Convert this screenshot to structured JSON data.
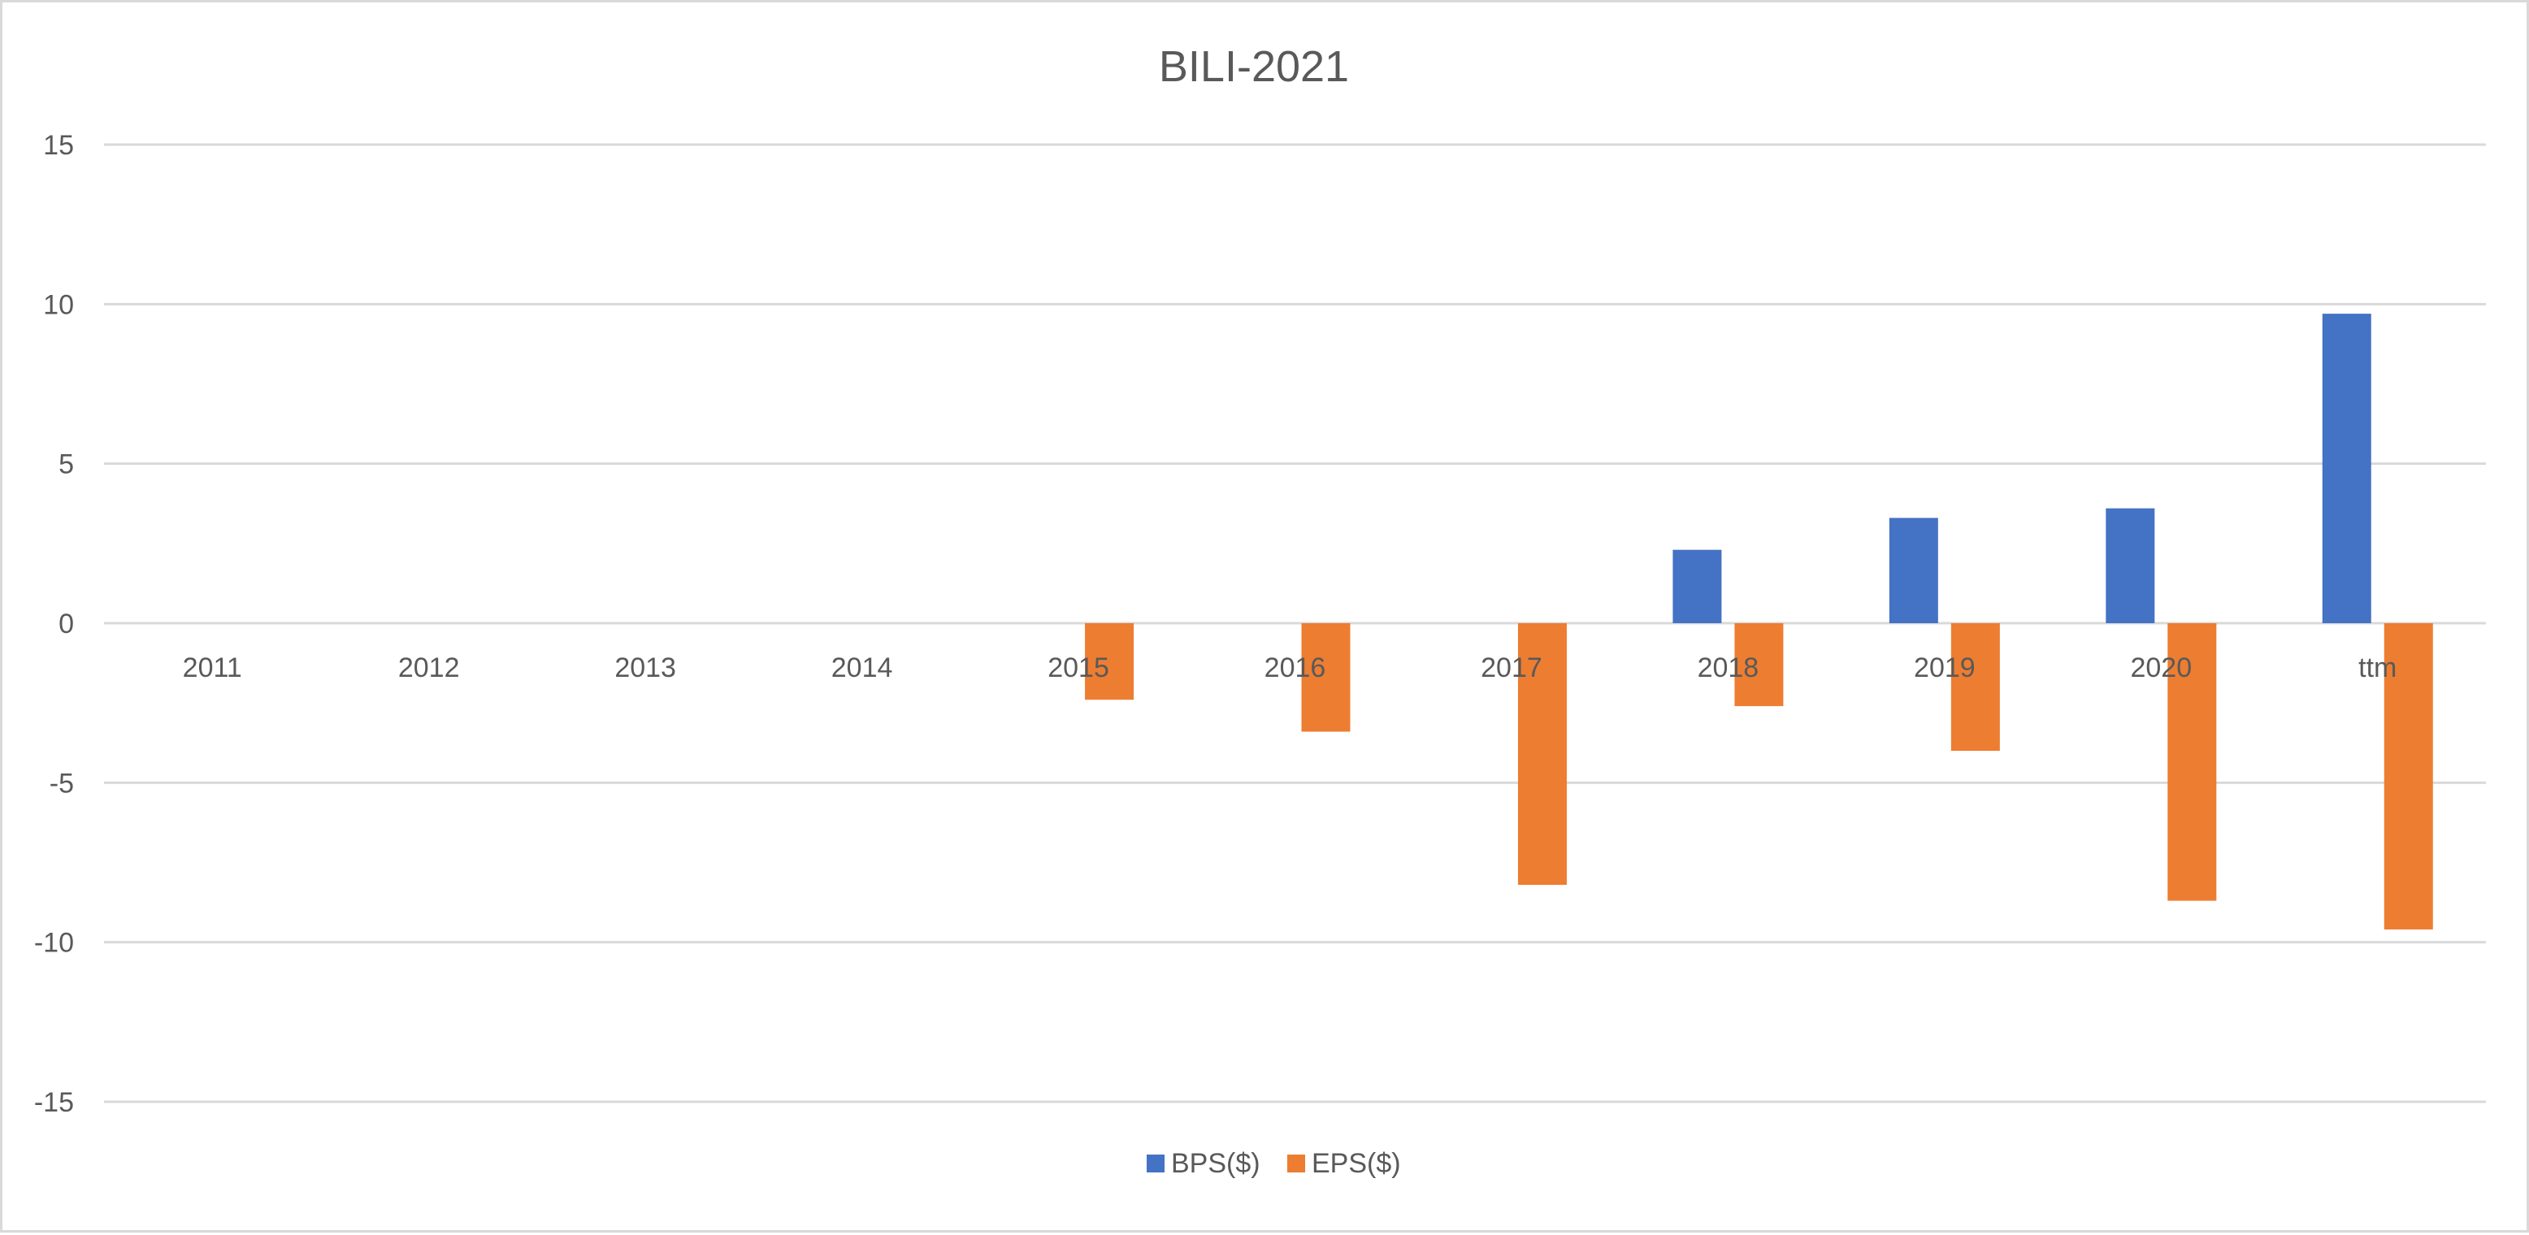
{
  "chart_data": {
    "type": "bar",
    "title": "BILI-2021",
    "xlabel": "",
    "ylabel": "",
    "categories": [
      "2011",
      "2012",
      "2013",
      "2014",
      "2015",
      "2016",
      "2017",
      "2018",
      "2019",
      "2020",
      "ttm"
    ],
    "series": [
      {
        "name": "BPS($)",
        "color": "#4472C4",
        "values": [
          null,
          null,
          null,
          null,
          null,
          null,
          null,
          2.3,
          3.3,
          3.6,
          9.7
        ]
      },
      {
        "name": "EPS($)",
        "color": "#ED7D31",
        "values": [
          null,
          null,
          null,
          null,
          -2.4,
          -3.4,
          -8.2,
          -2.6,
          -4.0,
          -8.7,
          -9.6
        ]
      }
    ],
    "ylim": [
      -15,
      15
    ],
    "yticks": [
      15,
      10,
      5,
      0,
      -5,
      -10,
      -15
    ],
    "grid": true,
    "legend_position": "bottom"
  }
}
